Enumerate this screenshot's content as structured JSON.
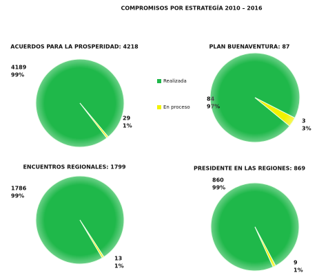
{
  "title": "COMPROMISOS POR ESTRATEGÍA 2010 – 2016",
  "chart_data": [
    {
      "type": "pie",
      "title": "ACUERDOS PARA LA PROSPERIDAD: 4218",
      "categories": [
        "Realizada",
        "En proceso"
      ],
      "values": [
        4189,
        29
      ],
      "percent_labels": [
        "99%",
        "1%"
      ],
      "colors": [
        "#1fb84a",
        "#f2f200"
      ]
    },
    {
      "type": "pie",
      "title": "PLAN BUENAVENTURA: 87",
      "categories": [
        "Realizada",
        "En proceso"
      ],
      "values": [
        84,
        3
      ],
      "percent_labels": [
        "97%",
        "3%"
      ],
      "colors": [
        "#1fb84a",
        "#f2f200"
      ]
    },
    {
      "type": "pie",
      "title": "ENCUENTROS REGIONALES: 1799",
      "categories": [
        "Realizada",
        "En proceso"
      ],
      "values": [
        1786,
        13
      ],
      "percent_labels": [
        "99%",
        "1%"
      ],
      "colors": [
        "#1fb84a",
        "#f2f200"
      ]
    },
    {
      "type": "pie",
      "title": "PRESIDENTE EN LAS REGIONES: 869",
      "categories": [
        "Realizada",
        "En proceso"
      ],
      "values": [
        860,
        9
      ],
      "percent_labels": [
        "99%",
        "1%"
      ],
      "colors": [
        "#1fb84a",
        "#f2f200"
      ]
    }
  ]
}
